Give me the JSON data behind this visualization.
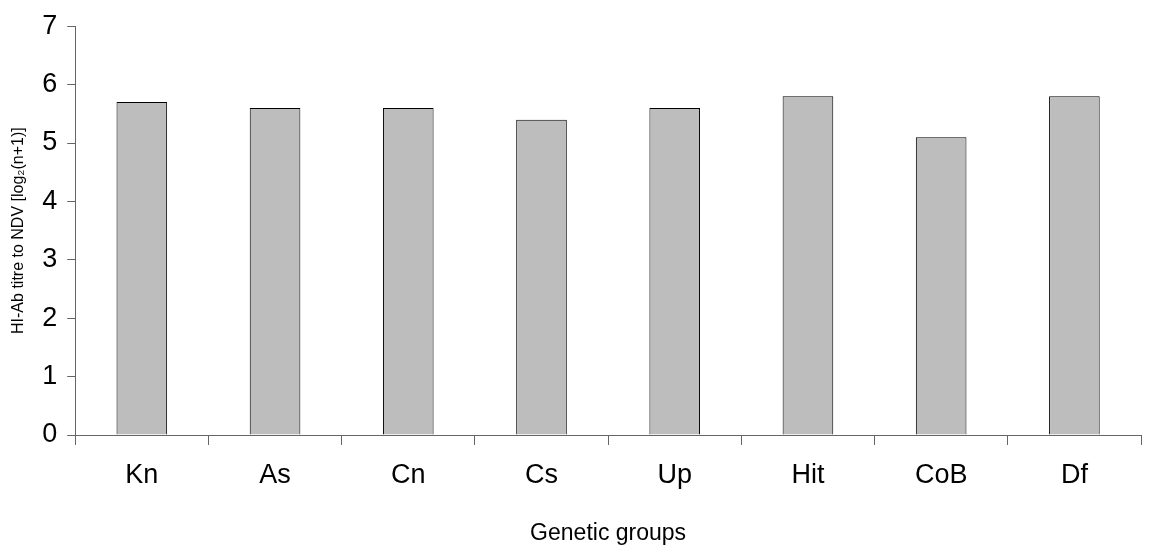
{
  "chart_data": {
    "type": "bar",
    "xlabel": "Genetic groups",
    "ylabel": "HI-Ab titre to NDV [log₂(n+1)]",
    "categories": [
      "Kn",
      "As",
      "Cn",
      "Cs",
      "Up",
      "Hit",
      "CoB",
      "Df"
    ],
    "values": [
      5.7,
      5.6,
      5.6,
      5.4,
      5.6,
      5.8,
      5.1,
      5.8
    ],
    "color": "#bdbdbd",
    "ylim": [
      0,
      7
    ],
    "yticks": [
      0,
      1,
      2,
      3,
      4,
      5,
      6,
      7
    ],
    "grid": false
  }
}
